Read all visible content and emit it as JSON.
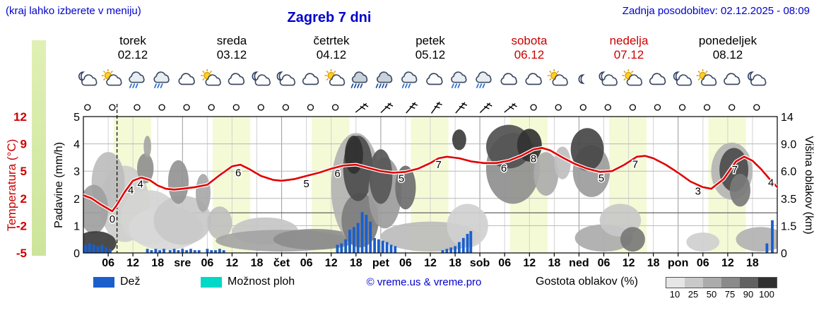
{
  "header": {
    "hint": "(kraj lahko izberete v meniju)",
    "title": "Zagreb 7 dni",
    "updated": "Zadnja posodobitev: 02.12.2025 - 08:09"
  },
  "days": [
    {
      "name": "torek",
      "date": "02.12",
      "color": "#000000"
    },
    {
      "name": "sreda",
      "date": "03.12",
      "color": "#000000"
    },
    {
      "name": "četrtek",
      "date": "04.12",
      "color": "#000000"
    },
    {
      "name": "petek",
      "date": "05.12",
      "color": "#000000"
    },
    {
      "name": "sobota",
      "date": "06.12",
      "color": "#cc0000"
    },
    {
      "name": "nedelja",
      "date": "07.12",
      "color": "#cc0000"
    },
    {
      "name": "ponedeljek",
      "date": "08.12",
      "color": "#000000"
    }
  ],
  "axes": {
    "temp_label": "Temperatura (°C)",
    "temp_ticks": [
      "12",
      "9",
      "5",
      "2",
      "-2",
      "-5"
    ],
    "precip_label": "Padavine (mm/h)",
    "precip_ticks": [
      "5",
      "4",
      "3",
      "2",
      "1",
      "0"
    ],
    "cloud_label": "Višina oblakov (km)",
    "cloud_ticks": [
      "14",
      "9.0",
      "6.0",
      "3.5",
      "1.5",
      "0"
    ]
  },
  "legend": {
    "rain": "Dež",
    "showers": "Možnost ploh",
    "copyright": "© vreme.us & vreme.pro",
    "cloud_density": "Gostota oblakov (%)",
    "density_ticks": [
      "10",
      "25",
      "50",
      "75",
      "90",
      "100"
    ]
  },
  "colors": {
    "rain": "#1a5fcc",
    "showers": "#00d8c8",
    "day_band": "#f5fad6",
    "temp_line": "#e00000",
    "density_scale": [
      "#e6e6e6",
      "#c9c9c9",
      "#ababab",
      "#8a8a8a",
      "#616161",
      "#2f2f2f"
    ]
  },
  "chart_data": {
    "type": "line",
    "x_unit": "hours from 02.12 00:00",
    "x_range": [
      0,
      168
    ],
    "now_hour": 8.15,
    "daylight": [
      [
        7.3,
        16.4
      ],
      [
        31.3,
        40.4
      ],
      [
        55.3,
        64.4
      ],
      [
        79.3,
        88.4
      ],
      [
        103.3,
        112.4
      ],
      [
        127.3,
        136.4
      ],
      [
        151.3,
        160.4
      ]
    ],
    "xticks": [
      [
        6,
        "06"
      ],
      [
        12,
        "12"
      ],
      [
        18,
        "18"
      ],
      [
        24,
        "sre"
      ],
      [
        30,
        "06"
      ],
      [
        36,
        "12"
      ],
      [
        42,
        "18"
      ],
      [
        48,
        "čet"
      ],
      [
        54,
        "06"
      ],
      [
        60,
        "12"
      ],
      [
        66,
        "18"
      ],
      [
        72,
        "pet"
      ],
      [
        78,
        "06"
      ],
      [
        84,
        "12"
      ],
      [
        90,
        "18"
      ],
      [
        96,
        "sob"
      ],
      [
        102,
        "06"
      ],
      [
        108,
        "12"
      ],
      [
        114,
        "18"
      ],
      [
        120,
        "ned"
      ],
      [
        126,
        "06"
      ],
      [
        132,
        "12"
      ],
      [
        138,
        "18"
      ],
      [
        144,
        "pon"
      ],
      [
        150,
        "06"
      ],
      [
        156,
        "12"
      ],
      [
        162,
        "18"
      ]
    ],
    "temperature": {
      "name": "Temperatura (°C)",
      "points": [
        [
          0,
          2.2
        ],
        [
          2,
          1.8
        ],
        [
          4,
          1.1
        ],
        [
          6,
          0.5
        ],
        [
          7,
          0.2
        ],
        [
          8,
          0.9
        ],
        [
          10,
          2.6
        ],
        [
          12,
          4.0
        ],
        [
          14,
          4.4
        ],
        [
          16,
          4.1
        ],
        [
          18,
          3.4
        ],
        [
          20,
          3.0
        ],
        [
          22,
          2.9
        ],
        [
          24,
          3.0
        ],
        [
          27,
          3.2
        ],
        [
          30,
          3.5
        ],
        [
          33,
          4.7
        ],
        [
          36,
          5.8
        ],
        [
          38,
          6.0
        ],
        [
          40,
          5.5
        ],
        [
          43,
          4.6
        ],
        [
          46,
          4.1
        ],
        [
          48,
          4.0
        ],
        [
          51,
          4.2
        ],
        [
          54,
          4.6
        ],
        [
          57,
          5.0
        ],
        [
          60,
          5.5
        ],
        [
          63,
          5.9
        ],
        [
          66,
          6.0
        ],
        [
          69,
          5.6
        ],
        [
          72,
          5.2
        ],
        [
          75,
          5.0
        ],
        [
          78,
          5.1
        ],
        [
          81,
          5.5
        ],
        [
          84,
          6.2
        ],
        [
          86,
          6.8
        ],
        [
          88,
          7.0
        ],
        [
          91,
          6.8
        ],
        [
          94,
          6.4
        ],
        [
          97,
          6.2
        ],
        [
          100,
          6.2
        ],
        [
          103,
          6.5
        ],
        [
          106,
          7.1
        ],
        [
          109,
          7.9
        ],
        [
          111,
          8.1
        ],
        [
          113,
          7.8
        ],
        [
          116,
          6.9
        ],
        [
          119,
          6.1
        ],
        [
          122,
          5.5
        ],
        [
          125,
          5.1
        ],
        [
          128,
          5.2
        ],
        [
          131,
          6.0
        ],
        [
          134,
          7.0
        ],
        [
          136,
          7.1
        ],
        [
          138,
          6.8
        ],
        [
          141,
          6.0
        ],
        [
          144,
          5.0
        ],
        [
          147,
          3.9
        ],
        [
          150,
          3.2
        ],
        [
          152,
          3.0
        ],
        [
          155,
          4.2
        ],
        [
          158,
          6.4
        ],
        [
          160,
          7.0
        ],
        [
          162,
          6.5
        ],
        [
          164,
          5.5
        ],
        [
          166,
          4.3
        ],
        [
          168,
          3.2
        ]
      ],
      "labels": [
        [
          7,
          "0",
          16
        ],
        [
          11.5,
          "4",
          14
        ],
        [
          13.8,
          "4",
          14
        ],
        [
          37.5,
          "6",
          16
        ],
        [
          54,
          "5",
          16
        ],
        [
          61.5,
          "6",
          14
        ],
        [
          77,
          "5",
          14
        ],
        [
          86,
          "7",
          14
        ],
        [
          101.8,
          "6",
          14
        ],
        [
          109,
          "8",
          18
        ],
        [
          125.4,
          "5",
          14
        ],
        [
          133.6,
          "7",
          14
        ],
        [
          148.8,
          "3",
          14
        ],
        [
          157.7,
          "7",
          14
        ],
        [
          166.5,
          "4",
          8
        ]
      ]
    },
    "rain": {
      "name": "Dež (mm/h)",
      "bars": [
        [
          0.5,
          0.3
        ],
        [
          1.5,
          0.35
        ],
        [
          2.5,
          0.3
        ],
        [
          3.5,
          0.25
        ],
        [
          4.5,
          0.3
        ],
        [
          5.5,
          0.2
        ],
        [
          6.5,
          0.15
        ],
        [
          15.5,
          0.15
        ],
        [
          16.5,
          0.1
        ],
        [
          17.5,
          0.15
        ],
        [
          18.5,
          0.1
        ],
        [
          19.5,
          0.15
        ],
        [
          21,
          0.1
        ],
        [
          22,
          0.15
        ],
        [
          23,
          0.1
        ],
        [
          24,
          0.15
        ],
        [
          25,
          0.1
        ],
        [
          26,
          0.15
        ],
        [
          27,
          0.1
        ],
        [
          28,
          0.1
        ],
        [
          30,
          0.15
        ],
        [
          31,
          0.1
        ],
        [
          32,
          0.1
        ],
        [
          33,
          0.15
        ],
        [
          34,
          0.1
        ],
        [
          61.5,
          0.3
        ],
        [
          62.5,
          0.35
        ],
        [
          63.5,
          0.5
        ],
        [
          64.5,
          0.85
        ],
        [
          65.5,
          0.95
        ],
        [
          66.5,
          1.1
        ],
        [
          67.5,
          1.5
        ],
        [
          68.5,
          1.4
        ],
        [
          69.5,
          1.15
        ],
        [
          70.5,
          0.55
        ],
        [
          71.5,
          0.5
        ],
        [
          72.5,
          0.45
        ],
        [
          73.5,
          0.4
        ],
        [
          74.5,
          0.3
        ],
        [
          75.5,
          0.25
        ],
        [
          87,
          0.1
        ],
        [
          88,
          0.15
        ],
        [
          89,
          0.2
        ],
        [
          90,
          0.25
        ],
        [
          91,
          0.4
        ],
        [
          92,
          0.55
        ],
        [
          93,
          0.7
        ],
        [
          93.8,
          0.8
        ],
        [
          165.5,
          0.35
        ],
        [
          166.8,
          1.2
        ]
      ]
    },
    "clouds": [
      [
        10,
        1.8,
        6,
        1.4,
        "#cdcdcd"
      ],
      [
        16,
        1.3,
        7,
        1.0,
        "#d4d4d4"
      ],
      [
        20,
        0.9,
        9,
        0.8,
        "#d8d8d8"
      ],
      [
        24,
        1.2,
        7,
        0.9,
        "#c9c9c9"
      ],
      [
        6,
        2.6,
        4,
        1.1,
        "#bdbdbd"
      ],
      [
        2.5,
        1.6,
        3.5,
        0.9,
        "#a0a0a0"
      ],
      [
        3,
        0.35,
        5,
        0.45,
        "#3c3c3c"
      ],
      [
        15,
        3.1,
        2,
        0.55,
        "#8f8f8f"
      ],
      [
        15.5,
        3.9,
        0.9,
        0.4,
        "#a5a5a5"
      ],
      [
        23,
        2.6,
        2.5,
        0.8,
        "#949494"
      ],
      [
        29,
        2.2,
        1.8,
        0.7,
        "#a8a8a8"
      ],
      [
        33,
        1.1,
        3,
        0.6,
        "#bfbfbf"
      ],
      [
        44,
        0.8,
        8,
        0.5,
        "#c6c6c6"
      ],
      [
        48,
        0.45,
        16,
        0.4,
        "#a4a4a4"
      ],
      [
        56,
        0.5,
        10,
        0.38,
        "#8d8d8d"
      ],
      [
        66,
        2.4,
        6,
        2.0,
        "#b2b2b2"
      ],
      [
        67,
        1.2,
        4.5,
        1.0,
        "#7d7d7d"
      ],
      [
        66.5,
        3.1,
        3.6,
        1.2,
        "#4d4d4d"
      ],
      [
        65.5,
        3.6,
        2.2,
        0.7,
        "#303030"
      ],
      [
        73,
        2.2,
        4,
        1.3,
        "#9c9c9c"
      ],
      [
        72,
        2.8,
        2.8,
        1.0,
        "#575757"
      ],
      [
        78,
        2.4,
        2.5,
        0.8,
        "#6e6e6e"
      ],
      [
        84,
        0.6,
        12,
        0.55,
        "#bcbcbc"
      ],
      [
        91,
        4.15,
        1.7,
        0.38,
        "#3d3d3d"
      ],
      [
        93,
        1.0,
        5,
        0.8,
        "#d0d0d0"
      ],
      [
        104,
        3.1,
        6.5,
        1.3,
        "#8f8f8f"
      ],
      [
        103,
        3.9,
        5.5,
        0.8,
        "#515151"
      ],
      [
        108,
        3.95,
        3,
        0.6,
        "#323232"
      ],
      [
        112,
        2.9,
        3,
        0.8,
        "#ababab"
      ],
      [
        116,
        3.3,
        2,
        0.6,
        "#bfbfbf"
      ],
      [
        123,
        3.0,
        4.5,
        0.95,
        "#9c9c9c"
      ],
      [
        122,
        3.8,
        4,
        0.78,
        "#474747"
      ],
      [
        126,
        0.55,
        7,
        0.5,
        "#ababab"
      ],
      [
        130,
        1.2,
        5,
        0.6,
        "#c8c8c8"
      ],
      [
        133,
        0.5,
        3,
        0.45,
        "#787878"
      ],
      [
        150,
        0.4,
        4,
        0.35,
        "#cfcfcf"
      ],
      [
        157,
        3.0,
        5,
        1.05,
        "#b4b4b4"
      ],
      [
        157.5,
        3.05,
        3.5,
        0.8,
        "#4c4c4c"
      ],
      [
        159,
        2.3,
        2.5,
        0.6,
        "#7a7a7a"
      ],
      [
        164,
        0.5,
        6,
        0.45,
        "#b2b2b2"
      ]
    ],
    "icons": [
      [
        1,
        "moon-cloud"
      ],
      [
        7,
        "sun-cloud"
      ],
      [
        13,
        "rain"
      ],
      [
        19,
        "rain"
      ],
      [
        25,
        "cloud"
      ],
      [
        31,
        "sun-cloud"
      ],
      [
        37,
        "cloud"
      ],
      [
        43,
        "moon-cloud"
      ],
      [
        49,
        "moon-cloud"
      ],
      [
        55,
        "cloud"
      ],
      [
        61,
        "sun-cloud"
      ],
      [
        67,
        "heavy-rain"
      ],
      [
        73,
        "heavy-rain"
      ],
      [
        79,
        "rain"
      ],
      [
        85,
        "cloud"
      ],
      [
        91,
        "rain"
      ],
      [
        97,
        "rain"
      ],
      [
        103,
        "cloud"
      ],
      [
        109,
        "cloud"
      ],
      [
        115,
        "sun-cloud"
      ],
      [
        121,
        "moon"
      ],
      [
        127,
        "moon-cloud"
      ],
      [
        133,
        "sun-cloud"
      ],
      [
        139,
        "cloud"
      ],
      [
        145,
        "moon-cloud"
      ],
      [
        151,
        "sun-cloud"
      ],
      [
        157,
        "cloud"
      ],
      [
        163,
        "moon-cloud"
      ]
    ],
    "wind": [
      [
        1,
        "calm",
        0
      ],
      [
        7,
        "calm",
        0
      ],
      [
        13,
        "calm",
        0
      ],
      [
        19,
        "calm",
        0
      ],
      [
        25,
        "calm",
        0
      ],
      [
        31,
        "calm",
        0
      ],
      [
        37,
        "calm",
        0
      ],
      [
        43,
        "calm",
        0
      ],
      [
        49,
        "calm",
        0
      ],
      [
        55,
        "calm",
        0
      ],
      [
        61,
        "calm",
        0
      ],
      [
        67,
        "barb",
        10
      ],
      [
        73,
        "barb",
        5
      ],
      [
        79,
        "barb",
        0
      ],
      [
        85,
        "barb",
        -5
      ],
      [
        91,
        "barb",
        0
      ],
      [
        97,
        "barb",
        5
      ],
      [
        103,
        "barb",
        10
      ],
      [
        109,
        "calm",
        0
      ],
      [
        115,
        "calm",
        0
      ],
      [
        121,
        "calm",
        0
      ],
      [
        127,
        "calm",
        0
      ],
      [
        133,
        "calm",
        0
      ],
      [
        139,
        "calm",
        0
      ],
      [
        145,
        "calm",
        0
      ],
      [
        151,
        "calm",
        0
      ],
      [
        157,
        "calm",
        0
      ],
      [
        163,
        "calm",
        0
      ]
    ]
  }
}
